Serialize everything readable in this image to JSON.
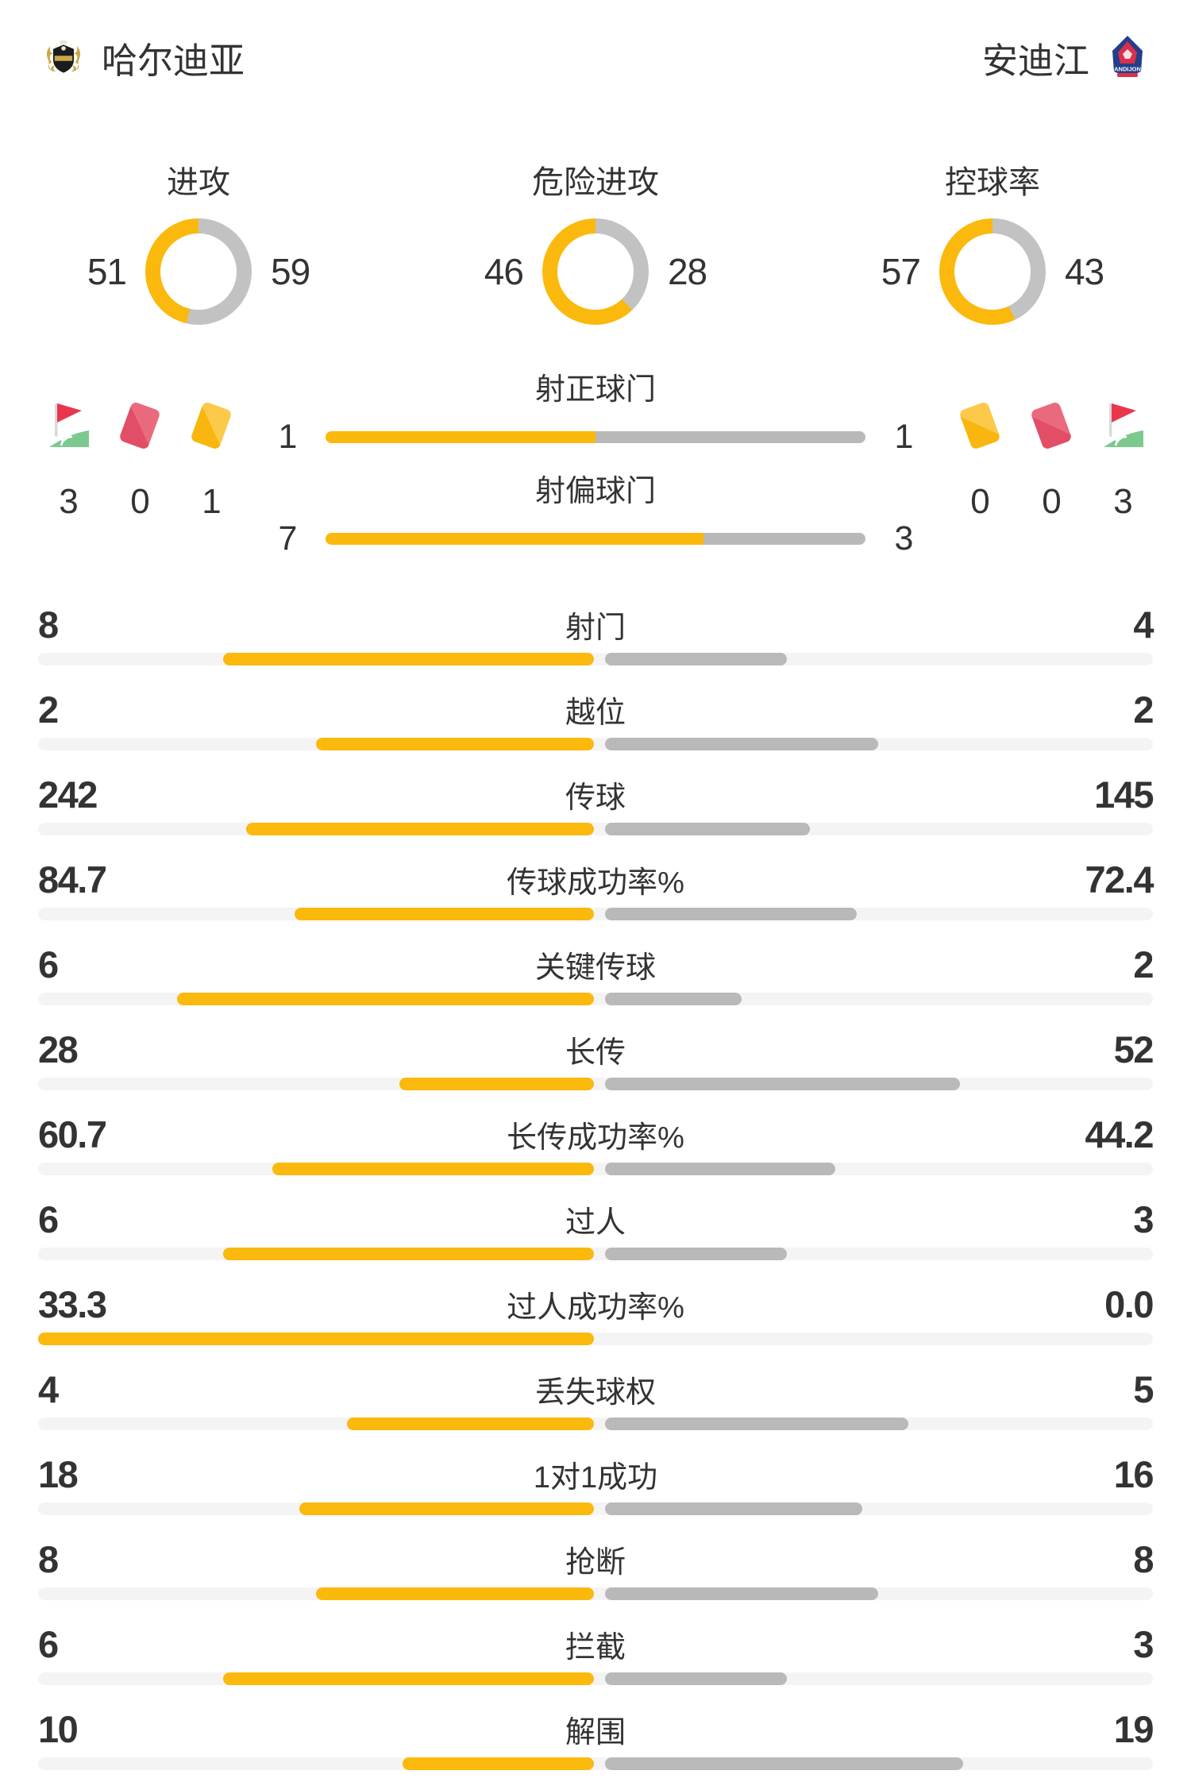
{
  "header": {
    "home": {
      "name": "哈尔迪亚"
    },
    "away": {
      "name": "安迪江",
      "logo_text": "ANDIJON"
    }
  },
  "colors": {
    "home_accent": "#FBB90D",
    "away_gray": "#B9B9B9",
    "donut_gray": "#C2C2C2",
    "track": "#F4F4F4",
    "text": "#333333",
    "red_card": "#E14E65",
    "yellow_card": "#F9B60F",
    "corner_green": "#7CC98F",
    "corner_red": "#E8374D"
  },
  "donuts": [
    {
      "label": "进攻",
      "home": "51",
      "away": "59"
    },
    {
      "label": "危险进攻",
      "home": "46",
      "away": "28"
    },
    {
      "label": "控球率",
      "home": "57",
      "away": "43"
    }
  ],
  "discipline": {
    "home": [
      {
        "icon": "corner-flag",
        "count": "3"
      },
      {
        "icon": "red-card",
        "count": "0"
      },
      {
        "icon": "yellow-card",
        "count": "1"
      }
    ],
    "away": [
      {
        "icon": "yellow-card",
        "count": "0"
      },
      {
        "icon": "red-card",
        "count": "0"
      },
      {
        "icon": "corner-flag",
        "count": "3"
      }
    ]
  },
  "shot_bars": [
    {
      "label": "射正球门",
      "home": "1",
      "away": "1"
    },
    {
      "label": "射偏球门",
      "home": "7",
      "away": "3"
    }
  ],
  "stats": [
    {
      "label": "射门",
      "home": "8",
      "away": "4"
    },
    {
      "label": "越位",
      "home": "2",
      "away": "2"
    },
    {
      "label": "传球",
      "home": "242",
      "away": "145"
    },
    {
      "label": "传球成功率%",
      "home": "84.7",
      "away": "72.4"
    },
    {
      "label": "关键传球",
      "home": "6",
      "away": "2"
    },
    {
      "label": "长传",
      "home": "28",
      "away": "52"
    },
    {
      "label": "长传成功率%",
      "home": "60.7",
      "away": "44.2"
    },
    {
      "label": "过人",
      "home": "6",
      "away": "3"
    },
    {
      "label": "过人成功率%",
      "home": "33.3",
      "away": "0.0"
    },
    {
      "label": "丢失球权",
      "home": "4",
      "away": "5"
    },
    {
      "label": "1对1成功",
      "home": "18",
      "away": "16"
    },
    {
      "label": "抢断",
      "home": "8",
      "away": "8"
    },
    {
      "label": "拦截",
      "home": "6",
      "away": "3"
    },
    {
      "label": "解围",
      "home": "10",
      "away": "19"
    }
  ],
  "chart_data": [
    {
      "type": "pie",
      "title": "进攻",
      "series": [
        {
          "name": "哈尔迪亚",
          "value": 51
        },
        {
          "name": "安迪江",
          "value": 59
        }
      ]
    },
    {
      "type": "pie",
      "title": "危险进攻",
      "series": [
        {
          "name": "哈尔迪亚",
          "value": 46
        },
        {
          "name": "安迪江",
          "value": 28
        }
      ]
    },
    {
      "type": "pie",
      "title": "控球率",
      "series": [
        {
          "name": "哈尔迪亚",
          "value": 57
        },
        {
          "name": "安迪江",
          "value": 43
        }
      ]
    },
    {
      "type": "bar",
      "categories": [
        "射正球门",
        "射偏球门",
        "射门",
        "越位",
        "传球",
        "传球成功率%",
        "关键传球",
        "长传",
        "长传成功率%",
        "过人",
        "过人成功率%",
        "丢失球权",
        "1对1成功",
        "抢断",
        "拦截",
        "解围",
        "角球",
        "红牌",
        "黄牌"
      ],
      "series": [
        {
          "name": "哈尔迪亚",
          "values": [
            1,
            7,
            8,
            2,
            242,
            84.7,
            6,
            28,
            60.7,
            6,
            33.3,
            4,
            18,
            8,
            6,
            10,
            3,
            0,
            1
          ]
        },
        {
          "name": "安迪江",
          "values": [
            1,
            3,
            4,
            2,
            145,
            72.4,
            2,
            52,
            44.2,
            3,
            0.0,
            5,
            16,
            8,
            3,
            19,
            3,
            0,
            0
          ]
        }
      ]
    }
  ]
}
